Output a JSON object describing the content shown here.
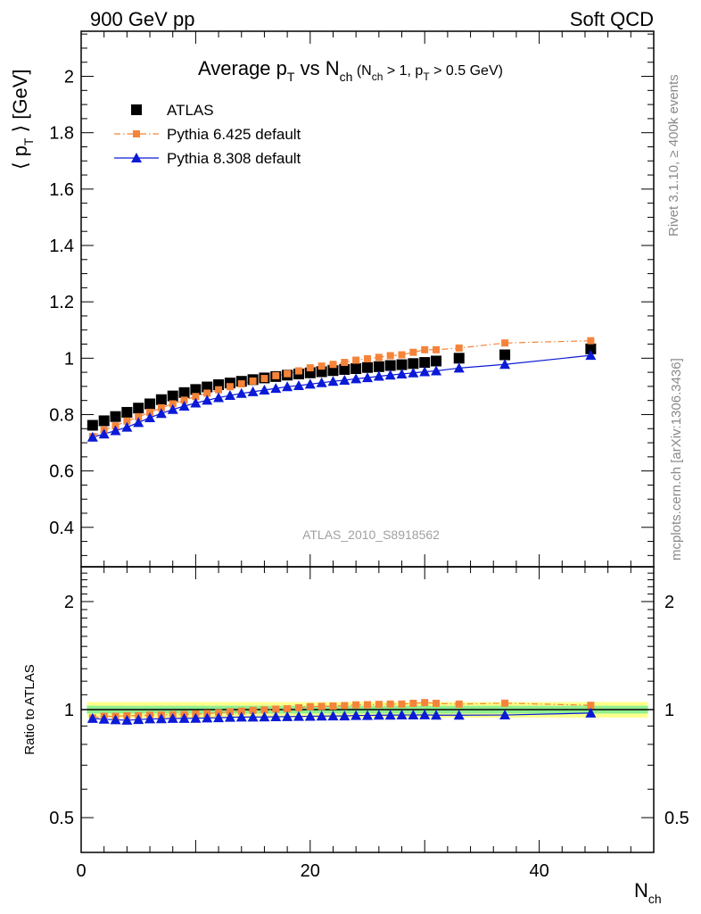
{
  "header": {
    "left": "900 GeV pp",
    "right": "Soft QCD"
  },
  "side_labels": {
    "rivet": "Rivet 3.1.10, ≥ 400k events",
    "mcplots": "mcplots.cern.ch [arXiv:1306.3436]"
  },
  "watermark": "ATLAS_2010_S8918562",
  "colors": {
    "atlas": "#000000",
    "pythia6": "#f5843a",
    "pythia8": "#0b1ad6",
    "band_inner": "#90ee90",
    "band_outer": "#ffff8c"
  },
  "chart_data": [
    {
      "type": "scatter",
      "panel": "main",
      "title": "Average p_T vs N_ch (N_ch > 1, p_T > 0.5 GeV)",
      "title_parts": {
        "a": "Average p",
        "a_sub": "T",
        "b": " vs N",
        "b_sub": "ch",
        "c": " (N",
        "c_sub": "ch",
        "d": " > 1, p",
        "d_sub": "T",
        "e": " > 0.5 GeV)"
      },
      "ylabel": "⟨ p_T ⟩ [GeV]",
      "ylabel_parts": {
        "a": "⟨ p",
        "sub": "T",
        "b": " ⟩  [GeV]"
      },
      "xlim": [
        0,
        50
      ],
      "ylim": [
        0.26,
        2.16
      ],
      "yticks": [
        {
          "v": 0.4,
          "label": "0.4"
        },
        {
          "v": 0.6,
          "label": "0.6"
        },
        {
          "v": 0.8,
          "label": "0.8"
        },
        {
          "v": 1.0,
          "label": "1"
        },
        {
          "v": 1.2,
          "label": "1.2"
        },
        {
          "v": 1.4,
          "label": "1.4"
        },
        {
          "v": 1.6,
          "label": "1.6"
        },
        {
          "v": 1.8,
          "label": "1.8"
        },
        {
          "v": 2.0,
          "label": "2"
        }
      ],
      "legend_position": "top-left",
      "series": [
        {
          "name": "ATLAS",
          "marker": "square",
          "line": "none",
          "x": [
            1,
            2,
            3,
            4,
            5,
            6,
            7,
            8,
            9,
            10,
            11,
            12,
            13,
            14,
            15,
            16,
            17,
            18,
            19,
            20,
            21,
            22,
            23,
            24,
            25,
            26,
            27,
            28,
            29,
            30,
            31,
            33,
            37,
            44.5
          ],
          "y": [
            0.762,
            0.778,
            0.793,
            0.808,
            0.823,
            0.838,
            0.853,
            0.866,
            0.878,
            0.889,
            0.898,
            0.906,
            0.912,
            0.918,
            0.924,
            0.93,
            0.935,
            0.94,
            0.944,
            0.948,
            0.952,
            0.956,
            0.96,
            0.963,
            0.967,
            0.97,
            0.974,
            0.977,
            0.981,
            0.985,
            0.99,
            1.0,
            1.012,
            1.033
          ]
        },
        {
          "name": "Pythia 6.425 default",
          "marker": "small-square",
          "line": "dashdot",
          "x": [
            1,
            2,
            3,
            4,
            5,
            6,
            7,
            8,
            9,
            10,
            11,
            12,
            13,
            14,
            15,
            16,
            17,
            18,
            19,
            20,
            21,
            22,
            23,
            24,
            25,
            26,
            27,
            28,
            29,
            30,
            31,
            33,
            37,
            44.5
          ],
          "y": [
            0.722,
            0.745,
            0.76,
            0.777,
            0.792,
            0.808,
            0.824,
            0.838,
            0.851,
            0.864,
            0.876,
            0.888,
            0.899,
            0.909,
            0.919,
            0.928,
            0.938,
            0.945,
            0.955,
            0.966,
            0.972,
            0.978,
            0.985,
            0.993,
            0.998,
            1.003,
            1.009,
            1.012,
            1.021,
            1.03,
            1.03,
            1.036,
            1.054,
            1.062
          ]
        },
        {
          "name": "Pythia 8.308 default",
          "marker": "triangle",
          "line": "solid",
          "x": [
            1,
            2,
            3,
            4,
            5,
            6,
            7,
            8,
            9,
            10,
            11,
            12,
            13,
            14,
            15,
            16,
            17,
            18,
            19,
            20,
            21,
            22,
            23,
            24,
            25,
            26,
            27,
            28,
            29,
            30,
            31,
            33,
            37,
            44.5
          ],
          "y": [
            0.72,
            0.731,
            0.743,
            0.755,
            0.772,
            0.789,
            0.804,
            0.818,
            0.83,
            0.841,
            0.851,
            0.86,
            0.868,
            0.875,
            0.881,
            0.887,
            0.893,
            0.899,
            0.903,
            0.908,
            0.913,
            0.918,
            0.922,
            0.927,
            0.931,
            0.936,
            0.94,
            0.944,
            0.948,
            0.952,
            0.955,
            0.965,
            0.978,
            1.01
          ]
        }
      ]
    },
    {
      "type": "scatter",
      "panel": "ratio",
      "ylabel": "Ratio to ATLAS",
      "xlabel": "N_ch",
      "xlabel_parts": {
        "a": "N",
        "sub": "ch"
      },
      "xlim": [
        0,
        50
      ],
      "ylim": [
        0.4,
        2.5
      ],
      "yscale": "log",
      "xticks": [
        {
          "v": 0,
          "label": "0"
        },
        {
          "v": 20,
          "label": "20"
        },
        {
          "v": 40,
          "label": "40"
        }
      ],
      "yticks": [
        {
          "v": 0.5,
          "label": "0.5"
        },
        {
          "v": 1,
          "label": "1"
        },
        {
          "v": 2,
          "label": "2"
        }
      ],
      "band": {
        "inner": [
          0.975,
          1.025
        ],
        "outer": [
          0.95,
          1.05
        ]
      },
      "series": [
        {
          "name": "Pythia 6.425 default",
          "x": [
            1,
            2,
            3,
            4,
            5,
            6,
            7,
            8,
            9,
            10,
            11,
            12,
            13,
            14,
            15,
            16,
            17,
            18,
            19,
            20,
            21,
            22,
            23,
            24,
            25,
            26,
            27,
            28,
            29,
            30,
            31,
            33,
            37,
            44.5
          ],
          "y": [
            0.948,
            0.958,
            0.958,
            0.962,
            0.962,
            0.965,
            0.966,
            0.968,
            0.969,
            0.972,
            0.975,
            0.98,
            0.986,
            0.99,
            0.995,
            0.998,
            1.003,
            1.005,
            1.012,
            1.019,
            1.021,
            1.023,
            1.026,
            1.031,
            1.032,
            1.034,
            1.036,
            1.036,
            1.041,
            1.046,
            1.041,
            1.036,
            1.042,
            1.028
          ]
        },
        {
          "name": "Pythia 8.308 default",
          "x": [
            1,
            2,
            3,
            4,
            5,
            6,
            7,
            8,
            9,
            10,
            11,
            12,
            13,
            14,
            15,
            16,
            17,
            18,
            19,
            20,
            21,
            22,
            23,
            24,
            25,
            26,
            27,
            28,
            29,
            30,
            31,
            33,
            37,
            44.5
          ],
          "y": [
            0.945,
            0.94,
            0.937,
            0.934,
            0.938,
            0.942,
            0.943,
            0.945,
            0.945,
            0.946,
            0.948,
            0.949,
            0.952,
            0.953,
            0.953,
            0.954,
            0.955,
            0.956,
            0.957,
            0.958,
            0.959,
            0.96,
            0.96,
            0.963,
            0.963,
            0.965,
            0.965,
            0.966,
            0.966,
            0.967,
            0.965,
            0.965,
            0.966,
            0.978
          ]
        }
      ]
    }
  ]
}
